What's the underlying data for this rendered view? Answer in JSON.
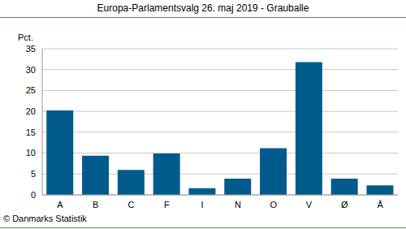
{
  "chart_data": {
    "type": "bar",
    "title": "Europa-Parlamentsvalg 26. maj 2019 - Grauballe",
    "y_label": "Pct.",
    "annotations": [
      "© Danmarks Statistik"
    ],
    "categories": [
      "A",
      "B",
      "C",
      "F",
      "I",
      "N",
      "O",
      "V",
      "Ø",
      "Å"
    ],
    "values": [
      20.2,
      9.4,
      6.0,
      9.9,
      1.6,
      3.9,
      11.2,
      31.8,
      3.9,
      2.3
    ],
    "color": "#005b8c",
    "ylim": [
      0,
      35
    ],
    "yticks": [
      0,
      5,
      10,
      15,
      20,
      25,
      30,
      35
    ],
    "grid": true
  }
}
